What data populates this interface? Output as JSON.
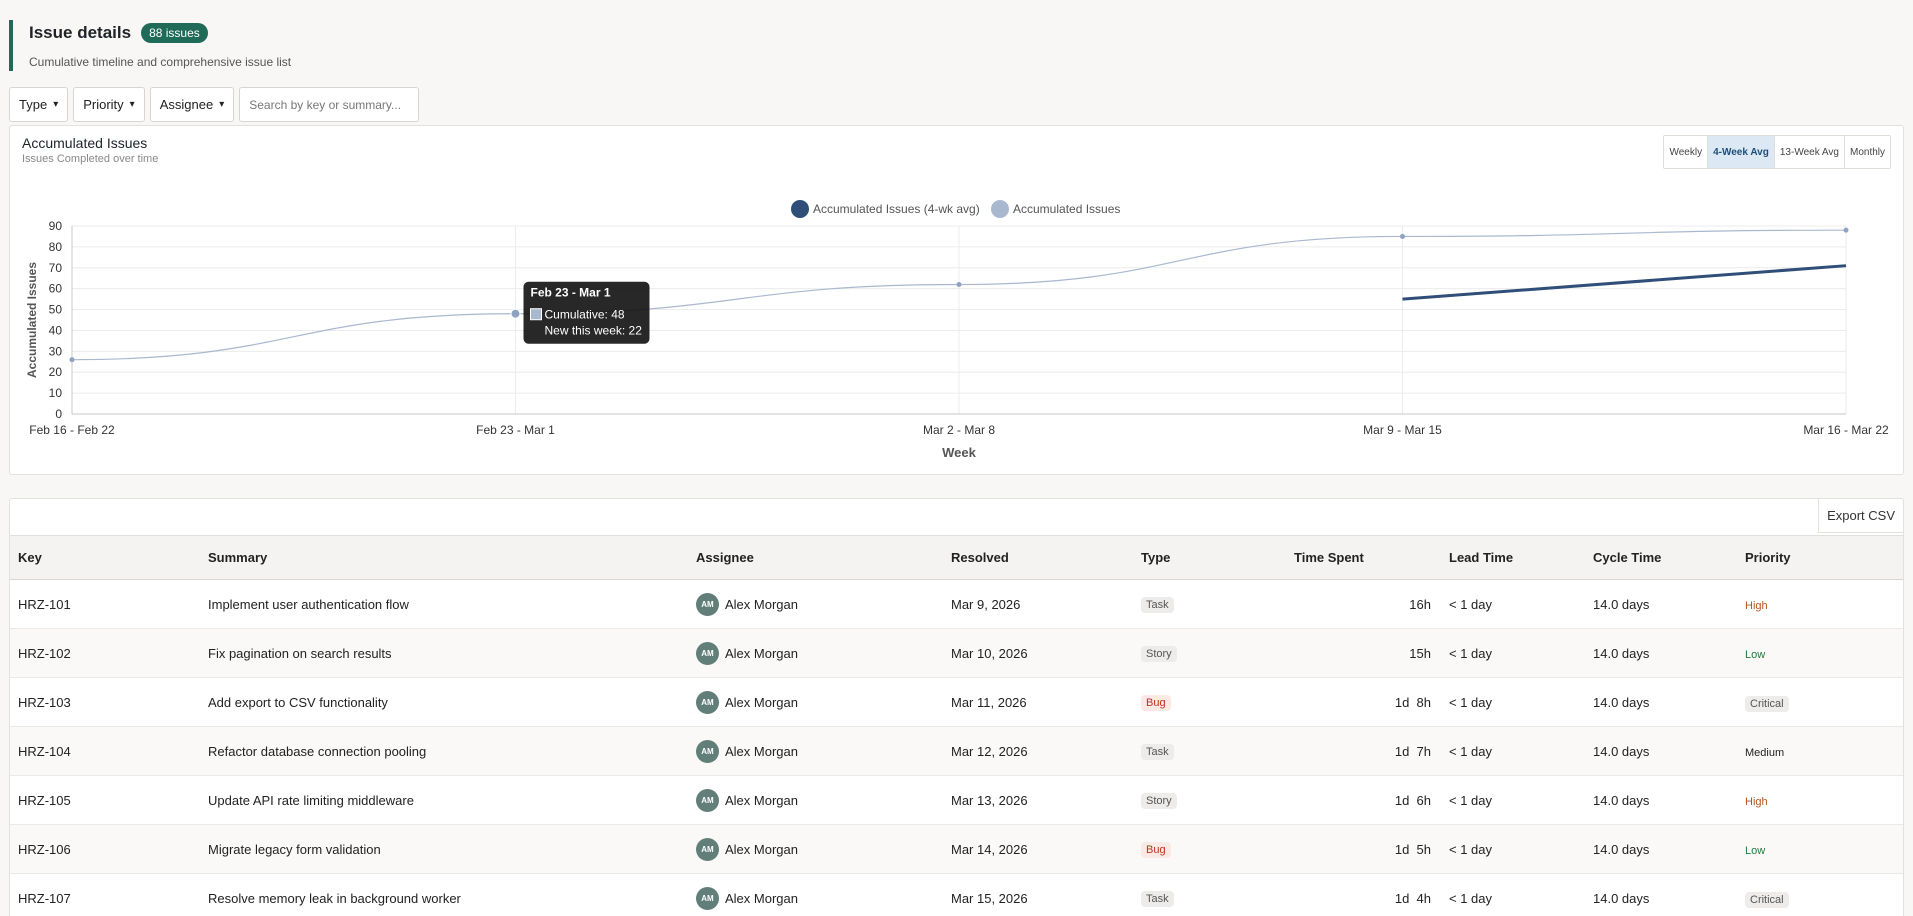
{
  "header": {
    "title": "Issue details",
    "count_badge": "88 issues",
    "subtitle": "Cumulative timeline and comprehensive issue list"
  },
  "filters": {
    "type_label": "Type",
    "priority_label": "Priority",
    "assignee_label": "Assignee",
    "caret": "▾",
    "search_placeholder": "Search by key or summary..."
  },
  "chart_card": {
    "title": "Accumulated Issues",
    "subtitle": "Issues Completed over time",
    "ranges": [
      "Weekly",
      "4-Week Avg",
      "13-Week Avg",
      "Monthly"
    ],
    "active_range": "4-Week Avg"
  },
  "chart_data": {
    "type": "line",
    "categories": [
      "Feb 16 - Feb 22",
      "Feb 23 - Mar 1",
      "Mar 2 - Mar 8",
      "Mar 9 - Mar 15",
      "Mar 16 - Mar 22"
    ],
    "series": [
      {
        "name": "Accumulated Issues (4-wk avg)",
        "color": "#2f4f78",
        "values": [
          null,
          null,
          null,
          55,
          71
        ]
      },
      {
        "name": "Accumulated Issues",
        "color": "#a9b8cf",
        "values": [
          26,
          48,
          62,
          85,
          88
        ]
      }
    ],
    "xlabel": "Week",
    "ylabel": "Accumulated Issues",
    "ylim": [
      0,
      90
    ],
    "yticks": [
      0,
      10,
      20,
      30,
      40,
      50,
      60,
      70,
      80,
      90
    ],
    "grid": true,
    "legend_placement": "top-center",
    "tooltip": {
      "title": "Feb 23 - Mar 1",
      "line1": "Cumulative: 48",
      "line2": "New this week: 22",
      "category_index": 1
    }
  },
  "table": {
    "export_label": "Export CSV",
    "columns": [
      "Key",
      "Summary",
      "Assignee",
      "Resolved",
      "Type",
      "Time Spent",
      "Lead Time",
      "Cycle Time",
      "Priority"
    ],
    "rows": [
      {
        "key": "HRZ-101",
        "summary": "Implement user authentication flow",
        "initials": "AM",
        "assignee": "Alex Morgan",
        "resolved": "Mar 9, 2026",
        "type": "Task",
        "time_spent": "16h",
        "lead_time": "< 1 day",
        "cycle_time": "14.0 days",
        "priority": "High"
      },
      {
        "key": "HRZ-102",
        "summary": "Fix pagination on search results",
        "initials": "AM",
        "assignee": "Alex Morgan",
        "resolved": "Mar 10, 2026",
        "type": "Story",
        "time_spent": "15h",
        "lead_time": "< 1 day",
        "cycle_time": "14.0 days",
        "priority": "Low"
      },
      {
        "key": "HRZ-103",
        "summary": "Add export to CSV functionality",
        "initials": "AM",
        "assignee": "Alex Morgan",
        "resolved": "Mar 11, 2026",
        "type": "Bug",
        "time_spent": "1d  8h",
        "lead_time": "< 1 day",
        "cycle_time": "14.0 days",
        "priority": "Critical"
      },
      {
        "key": "HRZ-104",
        "summary": "Refactor database connection pooling",
        "initials": "AM",
        "assignee": "Alex Morgan",
        "resolved": "Mar 12, 2026",
        "type": "Task",
        "time_spent": "1d  7h",
        "lead_time": "< 1 day",
        "cycle_time": "14.0 days",
        "priority": "Medium"
      },
      {
        "key": "HRZ-105",
        "summary": "Update API rate limiting middleware",
        "initials": "AM",
        "assignee": "Alex Morgan",
        "resolved": "Mar 13, 2026",
        "type": "Story",
        "time_spent": "1d  6h",
        "lead_time": "< 1 day",
        "cycle_time": "14.0 days",
        "priority": "High"
      },
      {
        "key": "HRZ-106",
        "summary": "Migrate legacy form validation",
        "initials": "AM",
        "assignee": "Alex Morgan",
        "resolved": "Mar 14, 2026",
        "type": "Bug",
        "time_spent": "1d  5h",
        "lead_time": "< 1 day",
        "cycle_time": "14.0 days",
        "priority": "Low"
      },
      {
        "key": "HRZ-107",
        "summary": "Resolve memory leak in background worker",
        "initials": "AM",
        "assignee": "Alex Morgan",
        "resolved": "Mar 15, 2026",
        "type": "Task",
        "time_spent": "1d  4h",
        "lead_time": "< 1 day",
        "cycle_time": "14.0 days",
        "priority": "Critical"
      }
    ]
  }
}
